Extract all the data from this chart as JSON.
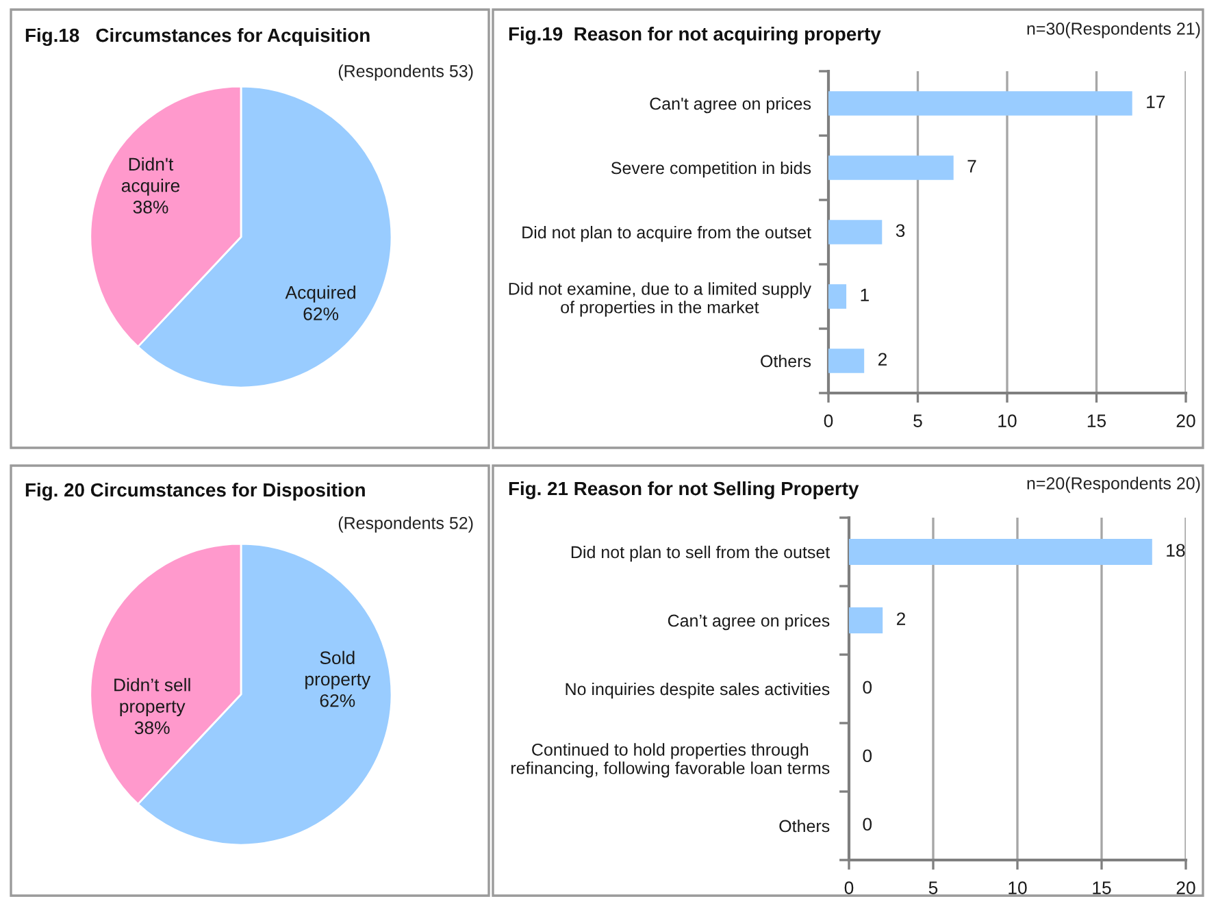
{
  "chart_data": [
    {
      "type": "pie",
      "title": "Fig.18   Circumstances for Acquisition",
      "subtitle": "(Respondents 53)",
      "categories": [
        "Acquired",
        "Didn't\nacquire"
      ],
      "values": [
        62,
        38
      ],
      "colors": [
        "#99ccff",
        "#ff99cc"
      ],
      "value_labels": [
        "62%",
        "38%"
      ]
    },
    {
      "type": "bar",
      "orientation": "horizontal",
      "title": "Fig.19  Reason for not acquiring property",
      "subtitle": "n=30(Respondents 21)",
      "categories": [
        "Can't agree on prices",
        "Severe competition in bids",
        "Did not plan to acquire from the outset",
        "Did not examine, due to a limited supply\nof properties in the market",
        "Others"
      ],
      "values": [
        17,
        7,
        3,
        1,
        2
      ],
      "color": "#99ccff",
      "xlim": [
        0,
        20
      ],
      "xticks": [
        0,
        5,
        10,
        15,
        20
      ],
      "grid": "x",
      "data_labels": true
    },
    {
      "type": "pie",
      "title": "Fig. 20 Circumstances for Disposition",
      "subtitle": "(Respondents 52)",
      "categories": [
        "Sold\nproperty",
        "Didn’t sell\nproperty"
      ],
      "values": [
        62,
        38
      ],
      "colors": [
        "#99ccff",
        "#ff99cc"
      ],
      "value_labels": [
        "62%",
        "38%"
      ]
    },
    {
      "type": "bar",
      "orientation": "horizontal",
      "title": "Fig. 21 Reason for not Selling Property",
      "subtitle": "n=20(Respondents 20)",
      "categories": [
        "Did not plan to sell from the outset",
        "Can’t agree on prices",
        "No inquiries despite sales activities",
        "Continued to hold properties through\nrefinancing, following favorable loan terms",
        "Others"
      ],
      "values": [
        18,
        2,
        0,
        0,
        0
      ],
      "color": "#99ccff",
      "xlim": [
        0,
        20
      ],
      "xticks": [
        0,
        5,
        10,
        15,
        20
      ],
      "grid": "x",
      "data_labels": true
    }
  ]
}
